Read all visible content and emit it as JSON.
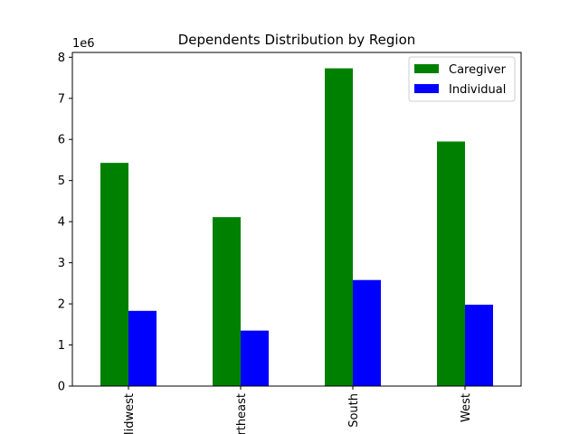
{
  "chart_data": {
    "type": "bar",
    "title": "Dependents Distribution by Region",
    "xlabel": "",
    "ylabel": "",
    "offset_label": "1e6",
    "categories": [
      "Midwest",
      "Northeast",
      "South",
      "West"
    ],
    "series": [
      {
        "name": "Caregiver",
        "color": "#008000",
        "values": [
          5430000,
          4110000,
          7730000,
          5950000
        ]
      },
      {
        "name": "Individual",
        "color": "#0000ff",
        "values": [
          1830000,
          1350000,
          2580000,
          1980000
        ]
      }
    ],
    "ylim": [
      0,
      8116500
    ],
    "yticks": [
      0,
      1,
      2,
      3,
      4,
      5,
      6,
      7,
      8
    ],
    "ytick_scale": 1000000,
    "legend": "upper-right",
    "grid": false
  }
}
